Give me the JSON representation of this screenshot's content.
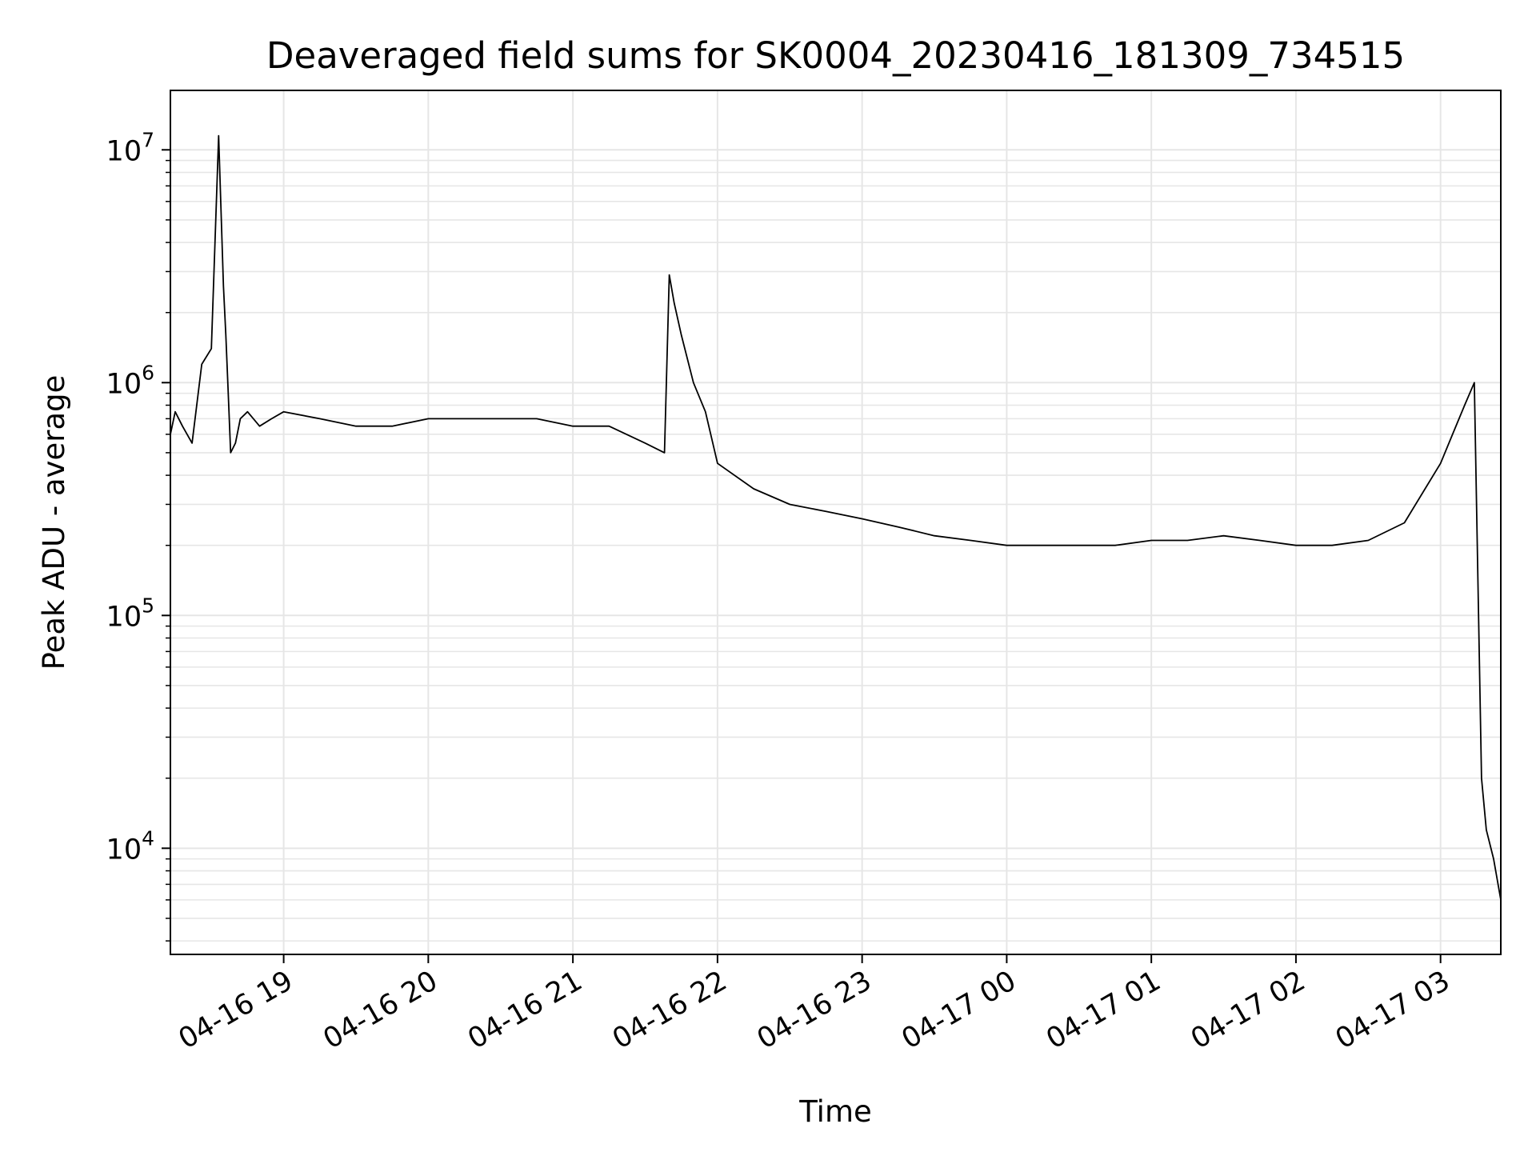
{
  "chart_data": {
    "type": "line",
    "title": "Deaveraged field sums for SK0004_20230416_181309_734515",
    "xlabel": "Time",
    "ylabel": "Peak ADU - average",
    "yscale": "log",
    "grid": true,
    "xlim": [
      "04-16 18:13",
      "04-17 03:25"
    ],
    "ylim": [
      3500,
      18000000
    ],
    "x_ticks": [
      "04-16 19",
      "04-16 20",
      "04-16 21",
      "04-16 22",
      "04-16 23",
      "04-17 00",
      "04-17 01",
      "04-17 02",
      "04-17 03"
    ],
    "y_ticks": [
      {
        "base": "10",
        "exp": "4",
        "value": 10000
      },
      {
        "base": "10",
        "exp": "5",
        "value": 100000
      },
      {
        "base": "10",
        "exp": "6",
        "value": 1000000
      },
      {
        "base": "10",
        "exp": "7",
        "value": 10000000
      }
    ],
    "line_color": "#000000",
    "grid_color": "#e6e6e6",
    "series": [
      {
        "x": [
          "04-16 18:13",
          "04-16 18:15",
          "04-16 18:18",
          "04-16 18:22",
          "04-16 18:26",
          "04-16 18:30",
          "04-16 18:33",
          "04-16 18:35",
          "04-16 18:36",
          "04-16 18:37",
          "04-16 18:38",
          "04-16 18:40",
          "04-16 18:42",
          "04-16 18:45",
          "04-16 18:50",
          "04-16 18:55",
          "04-16 19:00",
          "04-16 19:15",
          "04-16 19:30",
          "04-16 19:45",
          "04-16 20:00",
          "04-16 20:15",
          "04-16 20:30",
          "04-16 20:45",
          "04-16 21:00",
          "04-16 21:15",
          "04-16 21:30",
          "04-16 21:38",
          "04-16 21:40",
          "04-16 21:42",
          "04-16 21:45",
          "04-16 21:50",
          "04-16 21:55",
          "04-16 22:00",
          "04-16 22:15",
          "04-16 22:30",
          "04-16 22:45",
          "04-16 23:00",
          "04-16 23:15",
          "04-16 23:30",
          "04-16 23:45",
          "04-17 00:00",
          "04-17 00:15",
          "04-17 00:30",
          "04-17 00:45",
          "04-17 01:00",
          "04-17 01:15",
          "04-17 01:30",
          "04-17 01:45",
          "04-17 02:00",
          "04-17 02:15",
          "04-17 02:30",
          "04-17 02:45",
          "04-17 03:00",
          "04-17 03:05",
          "04-17 03:10",
          "04-17 03:14",
          "04-17 03:17",
          "04-17 03:19",
          "04-17 03:22",
          "04-17 03:25"
        ],
        "y": [
          600000,
          750000,
          650000,
          550000,
          1200000,
          1400000,
          11500000,
          2600000,
          1600000,
          900000,
          500000,
          550000,
          700000,
          750000,
          650000,
          700000,
          750000,
          700000,
          650000,
          650000,
          700000,
          700000,
          700000,
          700000,
          650000,
          650000,
          550000,
          500000,
          2900000,
          2200000,
          1600000,
          1000000,
          750000,
          450000,
          350000,
          300000,
          280000,
          260000,
          240000,
          220000,
          210000,
          200000,
          200000,
          200000,
          200000,
          210000,
          210000,
          220000,
          210000,
          200000,
          200000,
          210000,
          250000,
          450000,
          600000,
          800000,
          1000000,
          20000,
          12000,
          9000,
          6000
        ]
      }
    ]
  }
}
